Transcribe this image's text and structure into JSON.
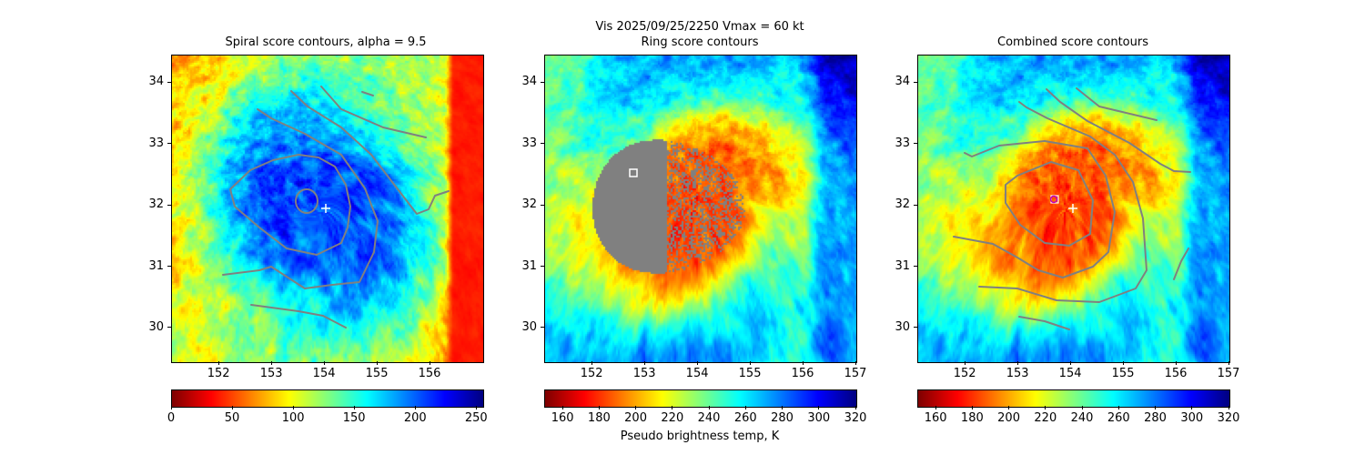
{
  "figure": {
    "suptitle": "Vis  2025/09/25/2250    Vmax = 60 kt",
    "colors": {
      "contour": "#808080",
      "mask": "#808080",
      "center_marker": "#ffffff",
      "fix_circle": "#c000c0"
    }
  },
  "chart_data": [
    {
      "type": "heatmap",
      "title": "Spiral score contours, alpha =  9.5",
      "xlim": [
        151.1,
        157.0
      ],
      "ylim": [
        29.45,
        34.45
      ],
      "xticks": [
        "152",
        "153",
        "154",
        "155",
        "156"
      ],
      "xtick_values": [
        152,
        153,
        154,
        155,
        156
      ],
      "yticks": [
        "30",
        "31",
        "32",
        "33",
        "34"
      ],
      "ytick_values": [
        30,
        31,
        32,
        33,
        34
      ],
      "colormap": "jet_r",
      "colorbar": {
        "range": [
          0,
          255
        ],
        "ticks": [
          "0",
          "50",
          "100",
          "150",
          "200",
          "250"
        ],
        "tick_values": [
          0,
          50,
          100,
          150,
          200,
          250
        ],
        "label": ""
      },
      "center_marker": {
        "lon": 154.0,
        "lat": 31.93
      }
    },
    {
      "type": "heatmap",
      "title": "Ring score contours",
      "xlim": [
        151.1,
        157.0
      ],
      "ylim": [
        29.45,
        34.45
      ],
      "xticks": [
        "152",
        "153",
        "154",
        "155",
        "156",
        "157"
      ],
      "xtick_values": [
        152,
        153,
        154,
        155,
        156,
        157
      ],
      "yticks": [
        "30",
        "31",
        "32",
        "33",
        "34"
      ],
      "ytick_values": [
        30,
        31,
        32,
        33,
        34
      ],
      "colormap": "jet_r",
      "colorbar": {
        "range": [
          150,
          320
        ],
        "ticks": [
          "160",
          "180",
          "200",
          "220",
          "240",
          "260",
          "280",
          "300",
          "320"
        ],
        "tick_values": [
          160,
          180,
          200,
          220,
          240,
          260,
          280,
          300,
          320
        ],
        "label": "Pseudo brightness temp, K"
      },
      "ring_marker": {
        "lon": 152.8,
        "lat": 32.52
      }
    },
    {
      "type": "heatmap",
      "title": "Combined score contours",
      "xlim": [
        151.1,
        157.0
      ],
      "ylim": [
        29.45,
        34.45
      ],
      "xticks": [
        "152",
        "153",
        "154",
        "155",
        "156",
        "157"
      ],
      "xtick_values": [
        152,
        153,
        154,
        155,
        156,
        157
      ],
      "yticks": [
        "30",
        "31",
        "32",
        "33",
        "34"
      ],
      "ytick_values": [
        30,
        31,
        32,
        33,
        34
      ],
      "colormap": "jet_r",
      "colorbar": {
        "range": [
          150,
          320
        ],
        "ticks": [
          "160",
          "180",
          "200",
          "220",
          "240",
          "260",
          "280",
          "300",
          "320"
        ],
        "tick_values": [
          160,
          180,
          200,
          220,
          240,
          260,
          280,
          300,
          320
        ],
        "label": ""
      },
      "center_marker": {
        "lon": 154.0,
        "lat": 31.93
      },
      "combined_fix": {
        "lon": 153.65,
        "lat": 32.08
      }
    }
  ]
}
